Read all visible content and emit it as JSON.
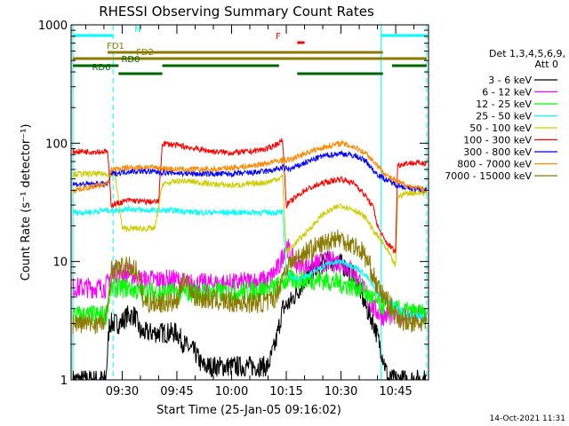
{
  "chart_data": {
    "type": "line",
    "title": "RHESSI Observing Summary Count Rates",
    "xlabel": "Start Time (25-Jan-05 09:16:02)",
    "ylabel": "Count Rate (s⁻¹ detector⁻¹)",
    "y_scale": "log",
    "ylim": [
      1,
      1000
    ],
    "xlim_minutes_after_0900": [
      16.0,
      114.0
    ],
    "x_ticks": [
      {
        "label": "09:30",
        "minutes": 30
      },
      {
        "label": "09:45",
        "minutes": 45
      },
      {
        "label": "10:00",
        "minutes": 60
      },
      {
        "label": "10:15",
        "minutes": 75
      },
      {
        "label": "10:30",
        "minutes": 90
      },
      {
        "label": "10:45",
        "minutes": 105
      }
    ],
    "y_ticks": [
      {
        "label": "1",
        "value": 1
      },
      {
        "label": "10",
        "value": 10
      },
      {
        "label": "100",
        "value": 100
      },
      {
        "label": "1000",
        "value": 1000
      }
    ],
    "legend_title": "Det 1,3,4,5,6,9,",
    "legend_subtitle": "Att 0",
    "legend_position": "right",
    "series": [
      {
        "name": "3 - 6 keV",
        "color": "#000000",
        "points": [
          [
            16.5,
            1.0
          ],
          [
            25.5,
            1.0
          ],
          [
            26.5,
            3.0
          ],
          [
            29.5,
            3.0
          ],
          [
            31.5,
            3.5
          ],
          [
            33.5,
            3.5
          ],
          [
            35.0,
            2.5
          ],
          [
            45.0,
            2.5
          ],
          [
            47.0,
            2.0
          ],
          [
            50.0,
            1.7
          ],
          [
            52.0,
            1.3
          ],
          [
            55.0,
            1.3
          ],
          [
            60.0,
            1.3
          ],
          [
            65.0,
            1.3
          ],
          [
            70.0,
            1.3
          ],
          [
            72.0,
            2.0
          ],
          [
            74.0,
            4.0
          ],
          [
            76.0,
            4.5
          ],
          [
            78.0,
            5.5
          ],
          [
            80.0,
            7.0
          ],
          [
            83.0,
            8.5
          ],
          [
            86.0,
            10.0
          ],
          [
            89.0,
            10.0
          ],
          [
            91.0,
            9.0
          ],
          [
            93.0,
            8.0
          ],
          [
            95.0,
            6.0
          ],
          [
            97.0,
            4.0
          ],
          [
            99.0,
            3.0
          ],
          [
            101.0,
            1.8
          ],
          [
            103.0,
            1.0
          ],
          [
            113.5,
            1.0
          ]
        ]
      },
      {
        "name": "6 - 12 keV",
        "color": "#ff00ff",
        "points": [
          [
            16.5,
            6.0
          ],
          [
            25.5,
            6.0
          ],
          [
            27.0,
            8.0
          ],
          [
            32.0,
            8.0
          ],
          [
            35.0,
            7.0
          ],
          [
            45.0,
            7.0
          ],
          [
            47.0,
            6.5
          ],
          [
            60.0,
            6.5
          ],
          [
            70.0,
            7.0
          ],
          [
            73.0,
            9.0
          ],
          [
            75.0,
            14.0
          ],
          [
            77.0,
            10.0
          ],
          [
            80.0,
            9.0
          ],
          [
            83.0,
            9.5
          ],
          [
            86.0,
            10.0
          ],
          [
            89.0,
            10.0
          ],
          [
            92.0,
            9.0
          ],
          [
            95.0,
            7.0
          ],
          [
            97.0,
            5.0
          ],
          [
            99.0,
            4.0
          ],
          [
            101.0,
            3.5
          ],
          [
            113.5,
            3.5
          ]
        ]
      },
      {
        "name": "12 - 25 keV",
        "color": "#00ff00",
        "points": [
          [
            16.5,
            3.5
          ],
          [
            25.5,
            3.5
          ],
          [
            27.0,
            6.0
          ],
          [
            32.0,
            6.0
          ],
          [
            35.0,
            5.5
          ],
          [
            45.0,
            5.5
          ],
          [
            47.0,
            5.5
          ],
          [
            60.0,
            5.5
          ],
          [
            72.0,
            6.0
          ],
          [
            75.0,
            7.0
          ],
          [
            80.0,
            7.0
          ],
          [
            85.0,
            7.0
          ],
          [
            90.0,
            6.5
          ],
          [
            95.0,
            6.0
          ],
          [
            100.0,
            4.5
          ],
          [
            103.0,
            4.0
          ],
          [
            113.5,
            3.5
          ]
        ]
      },
      {
        "name": "25 - 50 keV",
        "color": "#00ffff",
        "points": [
          [
            16.5,
            26.0
          ],
          [
            20.0,
            26.0
          ],
          [
            25.0,
            27.0
          ],
          [
            28.0,
            27.0
          ],
          [
            32.0,
            28.0
          ],
          [
            36.0,
            27.0
          ],
          [
            40.0,
            27.0
          ],
          [
            45.0,
            27.0
          ],
          [
            50.0,
            26.0
          ],
          [
            55.0,
            26.0
          ],
          [
            60.0,
            26.0
          ],
          [
            65.0,
            26.0
          ],
          [
            70.0,
            26.0
          ],
          [
            74.0,
            26.0
          ],
          [
            75.0,
            8.0
          ],
          [
            78.0,
            7.0
          ],
          [
            82.0,
            8.0
          ],
          [
            86.0,
            9.5
          ],
          [
            90.0,
            10.0
          ],
          [
            94.0,
            9.0
          ],
          [
            97.0,
            7.5
          ],
          [
            99.0,
            6.0
          ],
          [
            101.0,
            5.0
          ],
          [
            104.0,
            4.5
          ],
          [
            106.0,
            4.0
          ],
          [
            108.0,
            3.5
          ],
          [
            113.5,
            3.5
          ]
        ]
      },
      {
        "name": "50 - 100 keV",
        "color": "#cccc00",
        "points": [
          [
            16.5,
            55.0
          ],
          [
            20.0,
            55.0
          ],
          [
            25.0,
            55.0
          ],
          [
            28.0,
            55.0
          ],
          [
            30.0,
            19.0
          ],
          [
            35.0,
            19.0
          ],
          [
            39.0,
            19.0
          ],
          [
            41.0,
            45.0
          ],
          [
            46.0,
            48.0
          ],
          [
            50.0,
            47.0
          ],
          [
            55.0,
            45.0
          ],
          [
            60.0,
            44.0
          ],
          [
            65.0,
            45.0
          ],
          [
            70.0,
            47.0
          ],
          [
            74.0,
            52.0
          ],
          [
            75.0,
            12.0
          ],
          [
            80.0,
            17.0
          ],
          [
            85.0,
            25.0
          ],
          [
            90.0,
            30.0
          ],
          [
            94.0,
            27.0
          ],
          [
            97.0,
            23.0
          ],
          [
            99.0,
            18.0
          ],
          [
            101.0,
            15.0
          ],
          [
            103.0,
            12.0
          ],
          [
            105.0,
            9.0
          ],
          [
            105.5,
            35.0
          ],
          [
            108.0,
            38.0
          ],
          [
            113.5,
            38.0
          ]
        ]
      },
      {
        "name": "100 - 300 keV",
        "color": "#ff0000",
        "points": [
          [
            16.5,
            85.0
          ],
          [
            20.0,
            85.0
          ],
          [
            24.0,
            85.0
          ],
          [
            26.0,
            85.0
          ],
          [
            27.0,
            30.0
          ],
          [
            32.0,
            33.0
          ],
          [
            36.0,
            32.0
          ],
          [
            40.0,
            32.0
          ],
          [
            41.0,
            100.0
          ],
          [
            46.0,
            95.0
          ],
          [
            50.0,
            90.0
          ],
          [
            55.0,
            85.0
          ],
          [
            60.0,
            83.0
          ],
          [
            65.0,
            85.0
          ],
          [
            70.0,
            90.0
          ],
          [
            74.0,
            105.0
          ],
          [
            75.0,
            30.0
          ],
          [
            80.0,
            40.0
          ],
          [
            85.0,
            46.0
          ],
          [
            90.0,
            50.0
          ],
          [
            94.0,
            45.0
          ],
          [
            97.0,
            35.0
          ],
          [
            99.0,
            28.0
          ],
          [
            100.0,
            20.0
          ],
          [
            102.0,
            15.0
          ],
          [
            104.0,
            13.0
          ],
          [
            105.0,
            12.0
          ],
          [
            105.5,
            65.0
          ],
          [
            108.0,
            68.0
          ],
          [
            113.5,
            68.0
          ]
        ]
      },
      {
        "name": "300 - 800 keV",
        "color": "#0000ff",
        "points": [
          [
            16.5,
            45.0
          ],
          [
            20.0,
            45.0
          ],
          [
            24.0,
            45.0
          ],
          [
            26.0,
            45.0
          ],
          [
            27.0,
            55.0
          ],
          [
            32.0,
            58.0
          ],
          [
            36.0,
            58.0
          ],
          [
            40.0,
            57.0
          ],
          [
            45.0,
            56.0
          ],
          [
            50.0,
            55.0
          ],
          [
            55.0,
            55.0
          ],
          [
            60.0,
            55.0
          ],
          [
            65.0,
            56.0
          ],
          [
            70.0,
            58.0
          ],
          [
            74.0,
            62.0
          ],
          [
            76.0,
            60.0
          ],
          [
            80.0,
            68.0
          ],
          [
            85.0,
            78.0
          ],
          [
            90.0,
            82.0
          ],
          [
            94.0,
            78.0
          ],
          [
            97.0,
            70.0
          ],
          [
            99.0,
            58.0
          ],
          [
            101.0,
            52.0
          ],
          [
            103.0,
            48.0
          ],
          [
            105.0,
            45.0
          ],
          [
            108.0,
            42.0
          ],
          [
            113.5,
            40.0
          ]
        ]
      },
      {
        "name": "800 - 7000 keV",
        "color": "#ff8800",
        "points": [
          [
            16.5,
            40.0
          ],
          [
            20.0,
            42.0
          ],
          [
            24.0,
            44.0
          ],
          [
            26.0,
            45.0
          ],
          [
            27.0,
            60.0
          ],
          [
            32.0,
            62.0
          ],
          [
            36.0,
            63.0
          ],
          [
            40.0,
            62.0
          ],
          [
            45.0,
            60.0
          ],
          [
            50.0,
            60.0
          ],
          [
            55.0,
            60.0
          ],
          [
            60.0,
            62.0
          ],
          [
            65.0,
            64.0
          ],
          [
            70.0,
            68.0
          ],
          [
            74.0,
            72.0
          ],
          [
            76.0,
            72.0
          ],
          [
            80.0,
            82.0
          ],
          [
            85.0,
            92.0
          ],
          [
            90.0,
            100.0
          ],
          [
            94.0,
            92.0
          ],
          [
            97.0,
            82.0
          ],
          [
            99.0,
            70.0
          ],
          [
            101.0,
            60.0
          ],
          [
            103.0,
            52.0
          ],
          [
            105.0,
            48.0
          ],
          [
            108.0,
            44.0
          ],
          [
            113.5,
            40.0
          ]
        ]
      },
      {
        "name": "7000 - 15000 keV",
        "color": "#8b7a00",
        "points": [
          [
            16.5,
            3.0
          ],
          [
            25.5,
            3.0
          ],
          [
            27.0,
            8.5
          ],
          [
            32.0,
            9.0
          ],
          [
            34.0,
            8.5
          ],
          [
            36.0,
            4.5
          ],
          [
            45.0,
            4.5
          ],
          [
            47.0,
            7.5
          ],
          [
            50.0,
            5.0
          ],
          [
            60.0,
            4.5
          ],
          [
            70.0,
            4.5
          ],
          [
            72.0,
            5.0
          ],
          [
            75.0,
            9.0
          ],
          [
            80.0,
            12.0
          ],
          [
            85.0,
            14.0
          ],
          [
            88.0,
            16.0
          ],
          [
            90.0,
            15.5
          ],
          [
            93.0,
            14.0
          ],
          [
            96.0,
            12.0
          ],
          [
            98.0,
            9.0
          ],
          [
            100.0,
            6.0
          ],
          [
            103.0,
            4.5
          ],
          [
            105.0,
            3.5
          ],
          [
            108.0,
            3.0
          ],
          [
            113.5,
            3.0
          ]
        ]
      }
    ],
    "state_bars": [
      {
        "label": "N",
        "color": "#00ffff",
        "segments": [
          [
            16.5,
            27.5
          ],
          [
            101.0,
            113.5
          ]
        ]
      },
      {
        "label": "F",
        "color": "#ff0000",
        "segments": [
          [
            78.0,
            80.0
          ]
        ]
      },
      {
        "label": "FD1",
        "color": "#8b7a00",
        "segments": [
          [
            26.0,
            101.5
          ]
        ]
      },
      {
        "label": "FD2",
        "color": "#8b7a00",
        "segments": [
          [
            16.5,
            101.5
          ],
          [
            101.5,
            113.5
          ]
        ]
      },
      {
        "label": "RD0",
        "color": "#006400",
        "segments": [
          [
            16.5,
            29.0
          ],
          [
            41.0,
            73.0
          ],
          [
            104.0,
            113.5
          ]
        ]
      },
      {
        "label": "RD6",
        "color": "#006400",
        "segments": [
          [
            29.0,
            41.0
          ],
          [
            78.0,
            101.5
          ]
        ]
      }
    ],
    "grid": false,
    "timestamp": "14-Oct-2021 11:31"
  }
}
